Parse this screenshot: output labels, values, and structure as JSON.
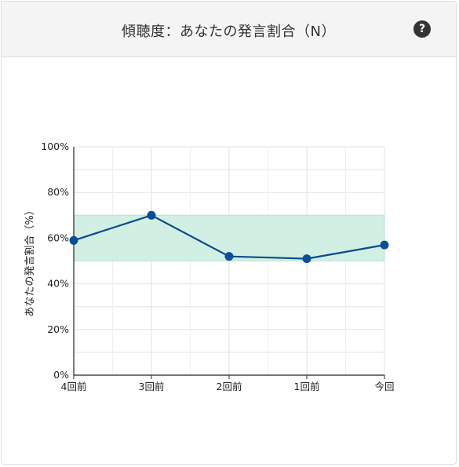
{
  "card": {
    "title": "傾聴度：あなたの発言割合（N）",
    "help_icon": "question-circle-icon",
    "help_label": "?"
  },
  "chart_data": {
    "type": "line",
    "categories": [
      "4回前",
      "3回前",
      "2回前",
      "1回前",
      "今回"
    ],
    "series": [
      {
        "values": [
          59,
          70,
          52,
          51,
          57
        ]
      }
    ],
    "target_band": [
      50,
      70
    ],
    "ylabel": "あなたの発言割合（%）",
    "xlabel": "",
    "ylim": [
      0,
      100
    ],
    "yticks": [
      "0%",
      "20%",
      "40%",
      "60%",
      "80%",
      "100%"
    ],
    "grid": true,
    "colors": {
      "line": "#0b4a8c",
      "point": "#0d4f94",
      "band": "#cdeee0",
      "band_edge": "#b5e3cf",
      "grid": "#e2e2e2",
      "axis": "#222222"
    }
  }
}
